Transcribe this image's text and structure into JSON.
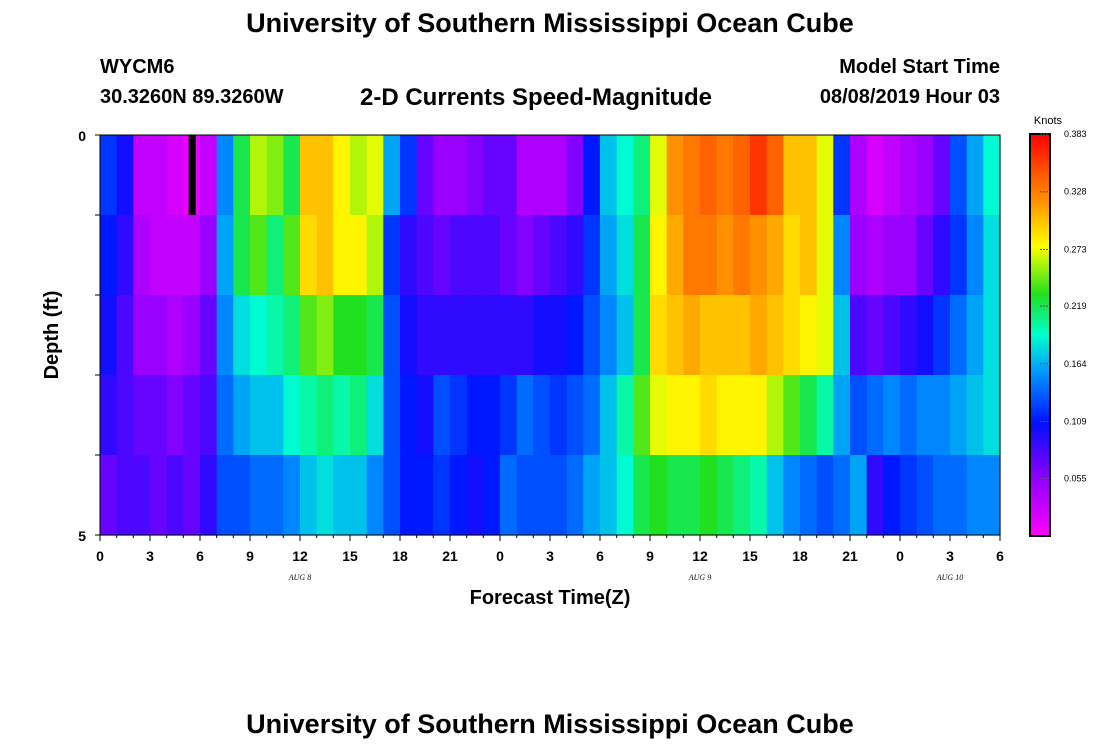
{
  "header": {
    "title": "University of Southern Mississippi Ocean Cube",
    "station_id": "WYCM6",
    "coordinates": "30.3260N 89.3260W",
    "plot_title": "2-D Currents Speed-Magnitude",
    "model_start_label": "Model Start Time",
    "model_start_value": "08/08/2019 Hour 03"
  },
  "footer": {
    "title": "University of Southern Mississippi Ocean Cube"
  },
  "chart_data": {
    "type": "heatmap",
    "title": "2-D Currents Speed-Magnitude",
    "xlabel": "Forecast Time(Z)",
    "ylabel": "Depth (ft)",
    "colorbar_label": "Knots",
    "colorbar_ticks": [
      "0.383",
      "0.328",
      "0.273",
      "0.219",
      "0.164",
      "0.109",
      "0.055"
    ],
    "color_range": [
      0.0,
      0.383
    ],
    "x_range_hours": [
      0,
      54
    ],
    "x_tick_labels": [
      "0",
      "3",
      "6",
      "9",
      "12",
      "15",
      "18",
      "21",
      "0",
      "3",
      "6",
      "9",
      "12",
      "15",
      "18",
      "21",
      "0",
      "3",
      "6"
    ],
    "x_tick_hours": [
      0,
      3,
      6,
      9,
      12,
      15,
      18,
      21,
      24,
      27,
      30,
      33,
      36,
      39,
      42,
      45,
      48,
      51,
      54
    ],
    "date_labels": [
      {
        "text": "AUG 8",
        "hour": 12
      },
      {
        "text": "AUG 9",
        "hour": 36
      },
      {
        "text": "AUG 10",
        "hour": 51
      }
    ],
    "y_range": [
      0,
      5
    ],
    "y_tick_labels": [
      "0",
      "5"
    ],
    "depth_layers": [
      0,
      1,
      2,
      3,
      4
    ],
    "x_hours": [
      0,
      1,
      2,
      3,
      4,
      5,
      6,
      7,
      8,
      9,
      10,
      11,
      12,
      13,
      14,
      15,
      16,
      17,
      18,
      19,
      20,
      21,
      22,
      23,
      24,
      25,
      26,
      27,
      28,
      29,
      30,
      31,
      32,
      33,
      34,
      35,
      36,
      37,
      38,
      39,
      40,
      41,
      42,
      43,
      44,
      45,
      46,
      47,
      48,
      49,
      50,
      51,
      52,
      53
    ],
    "values": [
      [
        0.12,
        0.1,
        0.03,
        0.03,
        0.02,
        0.01,
        0.03,
        0.15,
        0.22,
        0.26,
        0.25,
        0.22,
        0.3,
        0.3,
        0.28,
        0.26,
        0.27,
        0.16,
        0.12,
        0.07,
        0.05,
        0.05,
        0.06,
        0.07,
        0.07,
        0.04,
        0.04,
        0.04,
        0.06,
        0.11,
        0.17,
        0.19,
        0.21,
        0.27,
        0.32,
        0.33,
        0.34,
        0.33,
        0.34,
        0.36,
        0.34,
        0.3,
        0.3,
        0.27,
        0.12,
        0.04,
        0.02,
        0.03,
        0.04,
        0.05,
        0.07,
        0.13,
        0.16,
        0.19
      ],
      [
        0.11,
        0.09,
        0.04,
        0.03,
        0.03,
        0.03,
        0.05,
        0.16,
        0.22,
        0.24,
        0.21,
        0.24,
        0.29,
        0.3,
        0.28,
        0.28,
        0.26,
        0.12,
        0.09,
        0.08,
        0.07,
        0.08,
        0.08,
        0.08,
        0.07,
        0.06,
        0.07,
        0.08,
        0.09,
        0.12,
        0.16,
        0.18,
        0.22,
        0.28,
        0.31,
        0.33,
        0.33,
        0.32,
        0.33,
        0.32,
        0.31,
        0.29,
        0.3,
        0.27,
        0.15,
        0.05,
        0.04,
        0.05,
        0.05,
        0.07,
        0.09,
        0.12,
        0.15,
        0.18
      ],
      [
        0.1,
        0.08,
        0.05,
        0.05,
        0.04,
        0.05,
        0.07,
        0.15,
        0.18,
        0.19,
        0.2,
        0.21,
        0.24,
        0.25,
        0.23,
        0.23,
        0.22,
        0.13,
        0.1,
        0.09,
        0.09,
        0.09,
        0.09,
        0.09,
        0.09,
        0.09,
        0.1,
        0.1,
        0.11,
        0.13,
        0.15,
        0.17,
        0.22,
        0.29,
        0.3,
        0.31,
        0.3,
        0.3,
        0.3,
        0.31,
        0.3,
        0.29,
        0.28,
        0.27,
        0.17,
        0.08,
        0.07,
        0.08,
        0.09,
        0.1,
        0.12,
        0.14,
        0.16,
        0.18
      ],
      [
        0.09,
        0.08,
        0.07,
        0.07,
        0.06,
        0.07,
        0.08,
        0.14,
        0.16,
        0.17,
        0.17,
        0.19,
        0.2,
        0.21,
        0.2,
        0.21,
        0.18,
        0.13,
        0.11,
        0.1,
        0.13,
        0.12,
        0.11,
        0.11,
        0.12,
        0.14,
        0.13,
        0.12,
        0.13,
        0.14,
        0.17,
        0.2,
        0.24,
        0.27,
        0.28,
        0.28,
        0.29,
        0.28,
        0.28,
        0.28,
        0.26,
        0.24,
        0.22,
        0.2,
        0.16,
        0.13,
        0.14,
        0.15,
        0.14,
        0.15,
        0.15,
        0.16,
        0.17,
        0.18
      ],
      [
        0.07,
        0.08,
        0.08,
        0.07,
        0.08,
        0.07,
        0.09,
        0.13,
        0.13,
        0.14,
        0.14,
        0.15,
        0.17,
        0.18,
        0.17,
        0.17,
        0.15,
        0.13,
        0.11,
        0.11,
        0.12,
        0.11,
        0.1,
        0.11,
        0.14,
        0.13,
        0.13,
        0.13,
        0.14,
        0.16,
        0.17,
        0.19,
        0.22,
        0.23,
        0.22,
        0.22,
        0.23,
        0.22,
        0.21,
        0.2,
        0.17,
        0.15,
        0.14,
        0.13,
        0.14,
        0.16,
        0.09,
        0.11,
        0.12,
        0.13,
        0.14,
        0.14,
        0.15,
        0.15
      ]
    ],
    "missing_cells": [
      {
        "hour": 5.5,
        "layer": 0
      }
    ]
  }
}
